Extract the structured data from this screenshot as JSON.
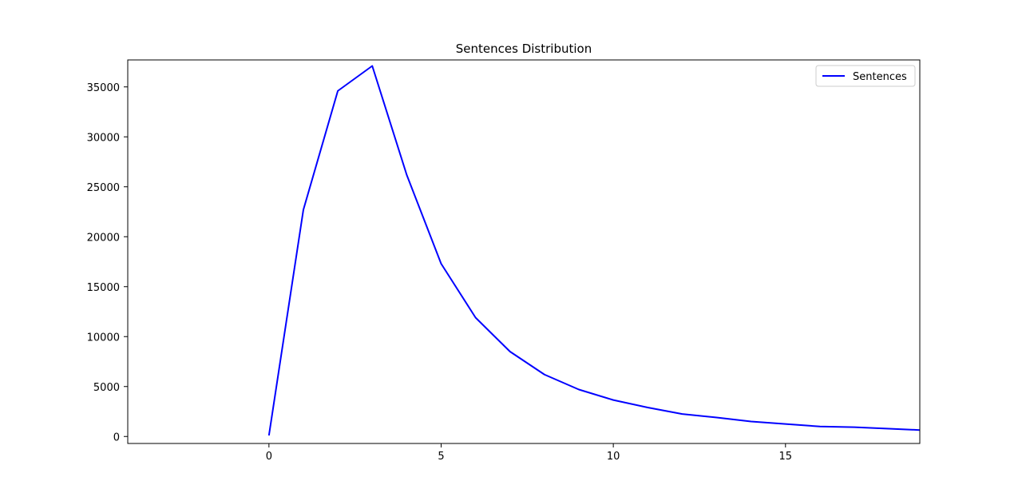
{
  "chart_data": {
    "type": "line",
    "title": "Sentences Distribution",
    "xlabel": "",
    "ylabel": "",
    "xlim": [
      -4.1,
      18.9
    ],
    "ylim": [
      -700,
      37700
    ],
    "x_ticks": [
      0,
      5,
      10,
      15
    ],
    "y_ticks": [
      0,
      5000,
      10000,
      15000,
      20000,
      25000,
      30000,
      35000
    ],
    "grid": false,
    "legend_position": "top-right",
    "series": [
      {
        "name": "Sentences",
        "color": "#0000ff",
        "x": [
          0,
          1,
          2,
          3,
          4,
          5,
          6,
          7,
          8,
          9,
          10,
          11,
          12,
          13,
          14,
          15,
          16,
          17,
          18,
          19
        ],
        "values": [
          100,
          22700,
          34600,
          37100,
          26200,
          17300,
          11900,
          8500,
          6200,
          4700,
          3650,
          2900,
          2250,
          1900,
          1500,
          1250,
          1000,
          930,
          780,
          630
        ]
      }
    ]
  }
}
